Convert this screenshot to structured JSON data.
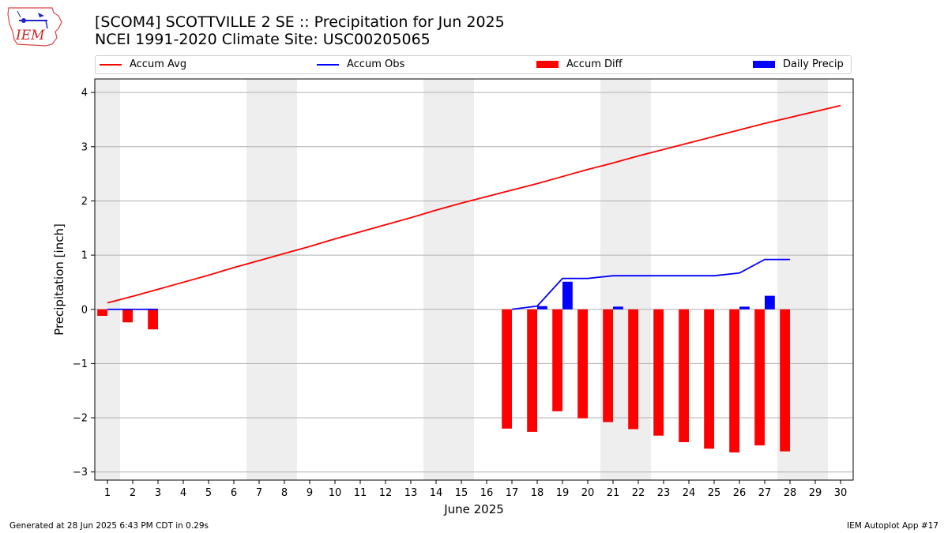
{
  "header": {
    "title_line1": "[SCOM4] SCOTTVILLE 2 SE :: Precipitation for Jun 2025",
    "title_line2": "NCEI 1991-2020 Climate Site: USC00205065",
    "logo_text": "IEM"
  },
  "legend": [
    {
      "label": "Accum Avg",
      "kind": "line",
      "color": "#ff0000"
    },
    {
      "label": "Accum Obs",
      "kind": "line",
      "color": "#0000ff"
    },
    {
      "label": "Accum Diff",
      "kind": "bar",
      "color": "#ff0000"
    },
    {
      "label": "Daily Precip",
      "kind": "bar",
      "color": "#0000ff"
    }
  ],
  "footer": {
    "left": "Generated at 28 Jun 2025 6:43 PM CDT in 0.29s",
    "right": "IEM Autoplot App #17"
  },
  "chart_data": {
    "type": "bar",
    "xlabel": "June 2025",
    "ylabel": "Precipitation [inch]",
    "xlim": [
      0.5,
      30.5
    ],
    "ylim": [
      -3.15,
      4.25
    ],
    "yticks": [
      -3,
      -2,
      -1,
      0,
      1,
      2,
      3,
      4
    ],
    "ytick_labels": [
      "−3",
      "−2",
      "−1",
      "0",
      "1",
      "2",
      "3",
      "4"
    ],
    "xticks": [
      1,
      2,
      3,
      4,
      5,
      6,
      7,
      8,
      9,
      10,
      11,
      12,
      13,
      14,
      15,
      16,
      17,
      18,
      19,
      20,
      21,
      22,
      23,
      24,
      25,
      26,
      27,
      28,
      29,
      30
    ],
    "xtick_labels": [
      "1",
      "2",
      "3",
      "4",
      "5",
      "6",
      "7",
      "8",
      "9",
      "10",
      "11",
      "12",
      "13",
      "14",
      "15",
      "16",
      "17",
      "18",
      "19",
      "20",
      "21",
      "22",
      "23",
      "24",
      "25",
      "26",
      "27",
      "28",
      "29",
      "30"
    ],
    "grid": "horizontal",
    "weekend_shading": [
      [
        0.5,
        1.5
      ],
      [
        6.5,
        8.5
      ],
      [
        13.5,
        15.5
      ],
      [
        20.5,
        22.5
      ],
      [
        27.5,
        29.5
      ]
    ],
    "weekend_color": "#eeeeee",
    "series": [
      {
        "name": "Accum Avg",
        "kind": "line",
        "color": "#ff0000",
        "x": [
          1,
          2,
          3,
          4,
          5,
          6,
          7,
          8,
          9,
          10,
          11,
          12,
          13,
          14,
          15,
          16,
          17,
          18,
          19,
          20,
          21,
          22,
          23,
          24,
          25,
          26,
          27,
          28,
          29,
          30
        ],
        "values": [
          0.12,
          0.24,
          0.37,
          0.5,
          0.63,
          0.77,
          0.9,
          1.03,
          1.16,
          1.3,
          1.43,
          1.56,
          1.69,
          1.83,
          1.96,
          2.08,
          2.2,
          2.32,
          2.45,
          2.58,
          2.7,
          2.83,
          2.95,
          3.07,
          3.19,
          3.31,
          3.43,
          3.54,
          3.65,
          3.76
        ]
      },
      {
        "name": "Accum Obs",
        "kind": "line",
        "color": "#0000ff",
        "x": [
          1,
          2,
          3,
          17,
          18,
          19,
          20,
          21,
          22,
          23,
          24,
          25,
          26,
          27,
          28
        ],
        "values": [
          0.0,
          0.0,
          0.0,
          0.0,
          0.06,
          0.57,
          0.57,
          0.62,
          0.62,
          0.62,
          0.62,
          0.62,
          0.67,
          0.92,
          0.92
        ],
        "gaps_after": [
          3
        ]
      },
      {
        "name": "Accum Diff",
        "kind": "bar",
        "color": "#ff0000",
        "x": [
          1,
          2,
          3,
          17,
          18,
          19,
          20,
          21,
          22,
          23,
          24,
          25,
          26,
          27,
          28
        ],
        "values": [
          -0.12,
          -0.24,
          -0.37,
          -2.2,
          -2.26,
          -1.88,
          -2.01,
          -2.08,
          -2.21,
          -2.33,
          -2.45,
          -2.57,
          -2.64,
          -2.51,
          -2.62
        ]
      },
      {
        "name": "Daily Precip",
        "kind": "bar",
        "color": "#0000ff",
        "x": [
          1,
          2,
          3,
          17,
          18,
          19,
          20,
          21,
          22,
          23,
          24,
          25,
          26,
          27,
          28
        ],
        "values": [
          0.0,
          0.0,
          0.0,
          0.0,
          0.06,
          0.51,
          0.0,
          0.05,
          0.0,
          0.0,
          0.0,
          0.0,
          0.05,
          0.25,
          0.0
        ]
      }
    ]
  }
}
